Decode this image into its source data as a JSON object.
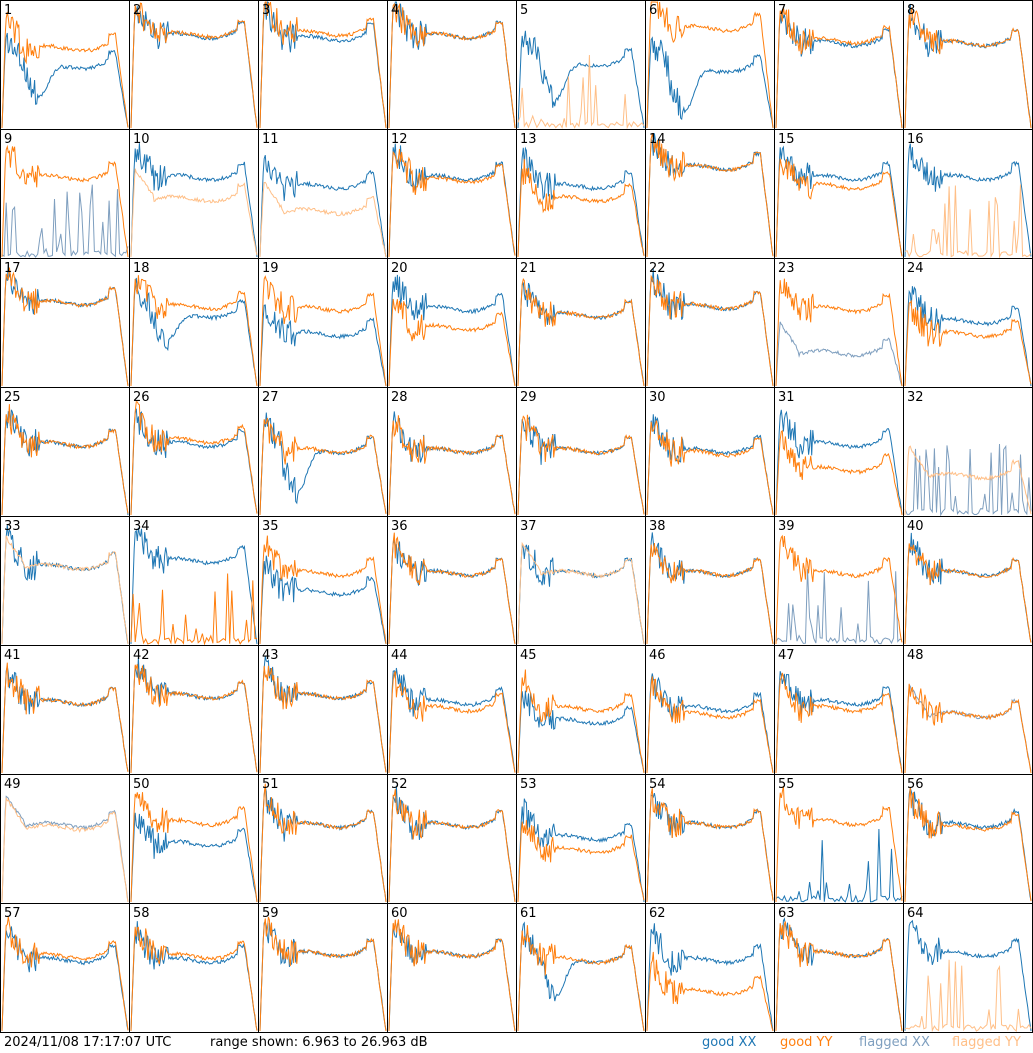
{
  "chart_data": {
    "type": "line",
    "layout": "8x8 small multiples",
    "timestamp": "2024/11/08 17:17:07 UTC",
    "range_text": "range shown: 6.963 to 26.963 dB",
    "ylim": [
      6.963,
      26.963
    ],
    "legend": [
      {
        "label": "good XX",
        "color": "#1f77b4"
      },
      {
        "label": "good YY",
        "color": "#ff7f0e"
      },
      {
        "label": "flagged XX",
        "color": "#7f9fbf"
      },
      {
        "label": "flagged YY",
        "color": "#ffbf87"
      }
    ],
    "panels": [
      {
        "id": "1",
        "xx": "good",
        "yy": "good",
        "xx_level": 0.48,
        "yy_level": 0.62,
        "dip": 0.25
      },
      {
        "id": "2",
        "xx": "good",
        "yy": "good",
        "xx_level": 0.72,
        "yy_level": 0.73
      },
      {
        "id": "3",
        "xx": "good",
        "yy": "good",
        "xx_level": 0.7,
        "yy_level": 0.74
      },
      {
        "id": "4",
        "xx": "good",
        "yy": "good",
        "xx_level": 0.72,
        "yy_level": 0.72
      },
      {
        "id": "5",
        "xx": "good",
        "yy": "flagged",
        "xx_level": 0.5,
        "yy_level": 0.0,
        "dip": 0.3
      },
      {
        "id": "6",
        "xx": "good",
        "yy": "good",
        "xx_level": 0.45,
        "yy_level": 0.78,
        "dip": 0.35
      },
      {
        "id": "7",
        "xx": "good",
        "yy": "good",
        "xx_level": 0.66,
        "yy_level": 0.68
      },
      {
        "id": "8",
        "xx": "good",
        "yy": "good",
        "xx_level": 0.66,
        "yy_level": 0.66
      },
      {
        "id": "9",
        "xx": "flagged",
        "yy": "good",
        "xx_level": 0.0,
        "yy_level": 0.62
      },
      {
        "id": "10",
        "xx": "good",
        "yy": "flagged",
        "xx_level": 0.62,
        "yy_level": 0.45
      },
      {
        "id": "11",
        "xx": "good",
        "yy": "flagged",
        "xx_level": 0.55,
        "yy_level": 0.35
      },
      {
        "id": "12",
        "xx": "good",
        "yy": "good",
        "xx_level": 0.62,
        "yy_level": 0.6
      },
      {
        "id": "13",
        "xx": "good",
        "yy": "good",
        "xx_level": 0.55,
        "yy_level": 0.45
      },
      {
        "id": "14",
        "xx": "good",
        "yy": "good",
        "xx_level": 0.7,
        "yy_level": 0.7
      },
      {
        "id": "15",
        "xx": "good",
        "yy": "good",
        "xx_level": 0.62,
        "yy_level": 0.55
      },
      {
        "id": "16",
        "xx": "good",
        "yy": "flagged",
        "xx_level": 0.62,
        "yy_level": 0.0
      },
      {
        "id": "17",
        "xx": "good",
        "yy": "good",
        "xx_level": 0.65,
        "yy_level": 0.65
      },
      {
        "id": "18",
        "xx": "good",
        "yy": "good",
        "xx_level": 0.55,
        "yy_level": 0.62,
        "dip": 0.2
      },
      {
        "id": "19",
        "xx": "good",
        "yy": "good",
        "xx_level": 0.4,
        "yy_level": 0.6
      },
      {
        "id": "20",
        "xx": "good",
        "yy": "good",
        "xx_level": 0.6,
        "yy_level": 0.45
      },
      {
        "id": "21",
        "xx": "good",
        "yy": "good",
        "xx_level": 0.55,
        "yy_level": 0.55
      },
      {
        "id": "22",
        "xx": "good",
        "yy": "good",
        "xx_level": 0.62,
        "yy_level": 0.62
      },
      {
        "id": "23",
        "xx": "flagged",
        "yy": "good",
        "xx_level": 0.25,
        "yy_level": 0.6
      },
      {
        "id": "24",
        "xx": "good",
        "yy": "good",
        "xx_level": 0.5,
        "yy_level": 0.4
      },
      {
        "id": "25",
        "xx": "good",
        "yy": "good",
        "xx_level": 0.55,
        "yy_level": 0.55
      },
      {
        "id": "26",
        "xx": "good",
        "yy": "good",
        "xx_level": 0.55,
        "yy_level": 0.58
      },
      {
        "id": "27",
        "xx": "good",
        "yy": "good",
        "xx_level": 0.5,
        "yy_level": 0.5,
        "dip": 0.35
      },
      {
        "id": "28",
        "xx": "good",
        "yy": "good",
        "xx_level": 0.5,
        "yy_level": 0.5
      },
      {
        "id": "29",
        "xx": "good",
        "yy": "good",
        "xx_level": 0.5,
        "yy_level": 0.5
      },
      {
        "id": "30",
        "xx": "good",
        "yy": "good",
        "xx_level": 0.5,
        "yy_level": 0.48
      },
      {
        "id": "31",
        "xx": "good",
        "yy": "good",
        "xx_level": 0.55,
        "yy_level": 0.35
      },
      {
        "id": "32",
        "xx": "flagged",
        "yy": "flagged",
        "xx_level": 0.0,
        "yy_level": 0.3
      },
      {
        "id": "33",
        "xx": "good",
        "yy": "flagged",
        "xx_level": 0.6,
        "yy_level": 0.6
      },
      {
        "id": "34",
        "xx": "good",
        "yy": "good",
        "xx_level": 0.65,
        "yy_level": 0.0
      },
      {
        "id": "35",
        "xx": "good",
        "yy": "good",
        "xx_level": 0.4,
        "yy_level": 0.55
      },
      {
        "id": "36",
        "xx": "good",
        "yy": "good",
        "xx_level": 0.55,
        "yy_level": 0.55
      },
      {
        "id": "37",
        "xx": "good",
        "yy": "flagged",
        "xx_level": 0.55,
        "yy_level": 0.55
      },
      {
        "id": "38",
        "xx": "good",
        "yy": "good",
        "xx_level": 0.55,
        "yy_level": 0.55
      },
      {
        "id": "39",
        "xx": "flagged",
        "yy": "good",
        "xx_level": 0.0,
        "yy_level": 0.55
      },
      {
        "id": "40",
        "xx": "good",
        "yy": "good",
        "xx_level": 0.55,
        "yy_level": 0.55
      },
      {
        "id": "41",
        "xx": "good",
        "yy": "good",
        "xx_level": 0.55,
        "yy_level": 0.55
      },
      {
        "id": "42",
        "xx": "good",
        "yy": "good",
        "xx_level": 0.6,
        "yy_level": 0.6
      },
      {
        "id": "43",
        "xx": "good",
        "yy": "good",
        "xx_level": 0.6,
        "yy_level": 0.6
      },
      {
        "id": "44",
        "xx": "good",
        "yy": "good",
        "xx_level": 0.55,
        "yy_level": 0.5
      },
      {
        "id": "45",
        "xx": "good",
        "yy": "good",
        "xx_level": 0.4,
        "yy_level": 0.5
      },
      {
        "id": "46",
        "xx": "good",
        "yy": "good",
        "xx_level": 0.5,
        "yy_level": 0.45
      },
      {
        "id": "47",
        "xx": "good",
        "yy": "good",
        "xx_level": 0.55,
        "yy_level": 0.5
      },
      {
        "id": "48",
        "xx": "flagged",
        "yy": "good",
        "xx_level": 0.45,
        "yy_level": 0.45
      },
      {
        "id": "49",
        "xx": "flagged",
        "yy": "flagged",
        "xx_level": 0.6,
        "yy_level": 0.58
      },
      {
        "id": "50",
        "xx": "good",
        "yy": "good",
        "xx_level": 0.45,
        "yy_level": 0.62
      },
      {
        "id": "51",
        "xx": "good",
        "yy": "good",
        "xx_level": 0.6,
        "yy_level": 0.6
      },
      {
        "id": "52",
        "xx": "good",
        "yy": "good",
        "xx_level": 0.6,
        "yy_level": 0.6
      },
      {
        "id": "53",
        "xx": "good",
        "yy": "good",
        "xx_level": 0.5,
        "yy_level": 0.4
      },
      {
        "id": "54",
        "xx": "good",
        "yy": "good",
        "xx_level": 0.6,
        "yy_level": 0.6
      },
      {
        "id": "55",
        "xx": "good",
        "yy": "good",
        "xx_level": 0.0,
        "yy_level": 0.62
      },
      {
        "id": "56",
        "xx": "good",
        "yy": "good",
        "xx_level": 0.6,
        "yy_level": 0.58
      },
      {
        "id": "57",
        "xx": "good",
        "yy": "good",
        "xx_level": 0.55,
        "yy_level": 0.58
      },
      {
        "id": "58",
        "xx": "good",
        "yy": "good",
        "xx_level": 0.55,
        "yy_level": 0.58
      },
      {
        "id": "59",
        "xx": "good",
        "yy": "good",
        "xx_level": 0.6,
        "yy_level": 0.6
      },
      {
        "id": "60",
        "xx": "good",
        "yy": "good",
        "xx_level": 0.6,
        "yy_level": 0.6
      },
      {
        "id": "61",
        "xx": "good",
        "yy": "good",
        "xx_level": 0.55,
        "yy_level": 0.55,
        "dip": 0.3
      },
      {
        "id": "62",
        "xx": "good",
        "yy": "good",
        "xx_level": 0.55,
        "yy_level": 0.3
      },
      {
        "id": "63",
        "xx": "good",
        "yy": "good",
        "xx_level": 0.6,
        "yy_level": 0.6
      },
      {
        "id": "64",
        "xx": "good",
        "yy": "flagged",
        "xx_level": 0.6,
        "yy_level": 0.0
      }
    ]
  }
}
